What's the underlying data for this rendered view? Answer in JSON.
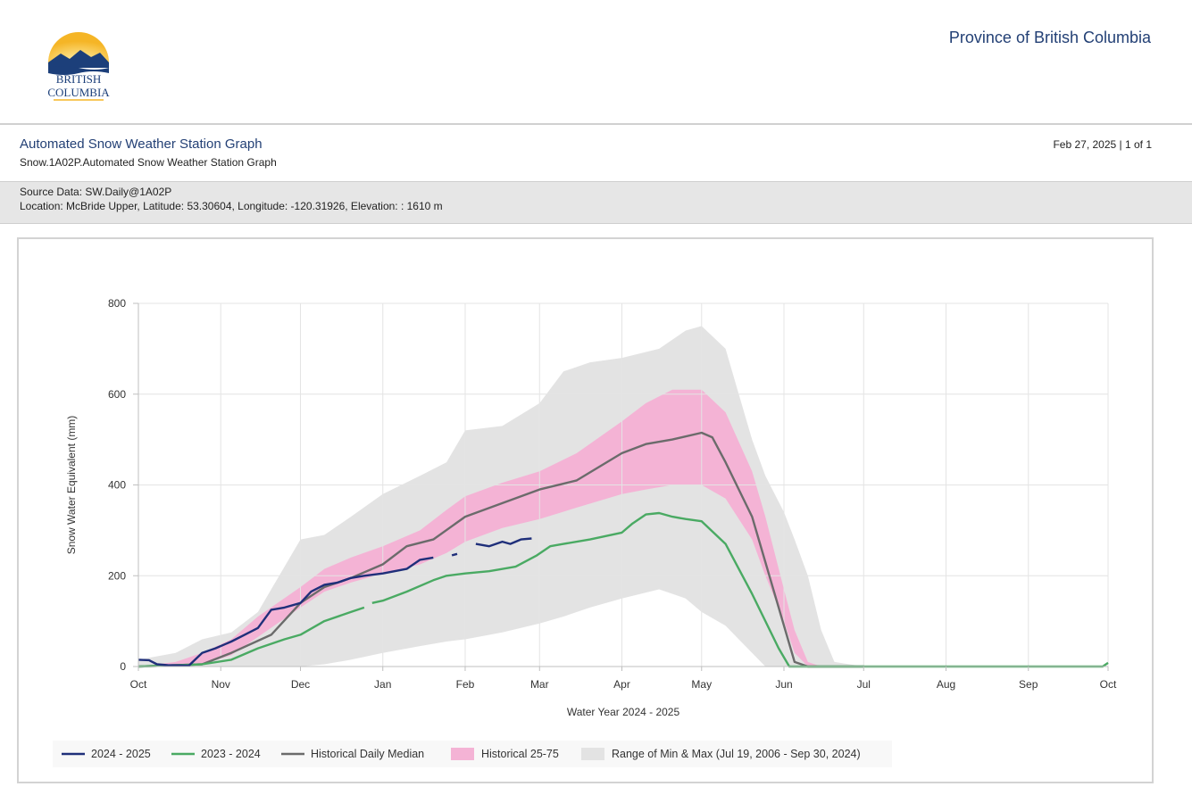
{
  "header": {
    "logo_text": [
      "BRITISH",
      "COLUMBIA"
    ],
    "province": "Province of British Columbia"
  },
  "report": {
    "title": "Automated Snow Weather Station Graph",
    "subtitle": "Snow.1A02P.Automated Snow Weather Station Graph",
    "date_page": "Feb 27, 2025 | 1 of 1",
    "source": "Source Data: SW.Daily@1A02P",
    "location": "Location: McBride Upper, Latitude: 53.30604, Longitude: -120.31926, Elevation: : 1610 m"
  },
  "colors": {
    "title_blue": "#234075",
    "series_2024_2025": "#1f2f7a",
    "series_2023_2024": "#4aaa63",
    "median": "#6b6b6b",
    "band_25_75": "#f4b3d5",
    "band_min_max": "#e3e3e3"
  },
  "chart_data": {
    "type": "line",
    "xlabel": "Water Year 2024 - 2025",
    "ylabel": "Snow Water Equivalent (mm)",
    "ylim": [
      0,
      800
    ],
    "yticks": [
      0,
      200,
      400,
      600,
      800
    ],
    "xlim": [
      "2024-10-01",
      "2025-10-01"
    ],
    "x_tick_labels": [
      "Oct",
      "Nov",
      "Dec",
      "Jan",
      "Feb",
      "Mar",
      "Apr",
      "May",
      "Jun",
      "Jul",
      "Aug",
      "Sep",
      "Oct"
    ],
    "x_ticks": [
      "2024-10-01",
      "2024-11-01",
      "2024-12-01",
      "2025-01-01",
      "2025-02-01",
      "2025-03-01",
      "2025-04-01",
      "2025-05-01",
      "2025-06-01",
      "2025-07-01",
      "2025-08-01",
      "2025-09-01",
      "2025-10-01"
    ],
    "grid": true,
    "legend_position": "bottom",
    "min_max_band": {
      "name": "Range of Min & Max (Jul 19, 2006 - Sep 30, 2024)",
      "x": [
        "2024-10-01",
        "2024-10-15",
        "2024-10-25",
        "2024-11-05",
        "2024-11-15",
        "2024-12-01",
        "2024-12-10",
        "2024-12-20",
        "2025-01-01",
        "2025-01-15",
        "2025-01-25",
        "2025-02-01",
        "2025-02-15",
        "2025-03-01",
        "2025-03-10",
        "2025-03-20",
        "2025-04-01",
        "2025-04-15",
        "2025-04-25",
        "2025-05-01",
        "2025-05-10",
        "2025-05-15",
        "2025-05-20",
        "2025-05-25",
        "2025-06-01",
        "2025-06-05",
        "2025-06-10",
        "2025-06-15",
        "2025-06-20",
        "2025-07-01"
      ],
      "low": [
        0,
        0,
        0,
        0,
        0,
        0,
        5,
        15,
        30,
        45,
        55,
        60,
        75,
        95,
        110,
        130,
        150,
        170,
        150,
        120,
        90,
        60,
        30,
        0,
        0,
        0,
        0,
        0,
        0,
        0
      ],
      "high": [
        15,
        30,
        60,
        75,
        120,
        280,
        290,
        330,
        380,
        420,
        450,
        520,
        530,
        580,
        650,
        670,
        680,
        700,
        740,
        750,
        700,
        600,
        500,
        420,
        340,
        280,
        200,
        80,
        10,
        0
      ]
    },
    "p25_75_band": {
      "name": "Historical 25-75",
      "x": [
        "2024-10-01",
        "2024-10-15",
        "2024-10-25",
        "2024-11-05",
        "2024-11-15",
        "2024-12-01",
        "2024-12-10",
        "2024-12-20",
        "2025-01-01",
        "2025-01-15",
        "2025-01-25",
        "2025-02-01",
        "2025-02-15",
        "2025-03-01",
        "2025-03-15",
        "2025-04-01",
        "2025-04-10",
        "2025-04-20",
        "2025-05-01",
        "2025-05-10",
        "2025-05-20",
        "2025-05-25",
        "2025-06-01",
        "2025-06-05",
        "2025-06-10",
        "2025-06-15"
      ],
      "low": [
        0,
        0,
        5,
        25,
        65,
        130,
        165,
        185,
        205,
        225,
        250,
        275,
        305,
        325,
        350,
        380,
        390,
        400,
        400,
        370,
        280,
        200,
        100,
        30,
        0,
        0
      ],
      "high": [
        0,
        10,
        30,
        60,
        110,
        175,
        215,
        240,
        265,
        300,
        345,
        375,
        405,
        430,
        470,
        540,
        580,
        610,
        610,
        560,
        430,
        330,
        170,
        80,
        10,
        0
      ]
    },
    "series": [
      {
        "name": "2024 - 2025",
        "segments": [
          {
            "x": [
              "2024-10-01",
              "2024-10-05",
              "2024-10-08",
              "2024-10-12",
              "2024-10-20",
              "2024-10-25",
              "2024-10-30",
              "2024-11-05",
              "2024-11-10",
              "2024-11-15",
              "2024-11-20",
              "2024-11-25",
              "2024-12-01",
              "2024-12-05",
              "2024-12-10",
              "2024-12-15",
              "2024-12-20",
              "2024-12-25",
              "2025-01-01",
              "2025-01-10",
              "2025-01-15",
              "2025-01-20"
            ],
            "y": [
              15,
              14,
              5,
              3,
              2,
              30,
              40,
              55,
              70,
              85,
              125,
              130,
              140,
              165,
              180,
              185,
              195,
              200,
              205,
              215,
              235,
              240
            ]
          },
          {
            "x": [
              "2025-01-27",
              "2025-01-29"
            ],
            "y": [
              245,
              248
            ]
          },
          {
            "x": [
              "2025-02-05",
              "2025-02-10",
              "2025-02-15",
              "2025-02-18",
              "2025-02-22",
              "2025-02-26"
            ],
            "y": [
              270,
              265,
              275,
              270,
              280,
              282
            ]
          }
        ]
      },
      {
        "name": "2023 - 2024",
        "segments": [
          {
            "x": [
              "2024-10-01",
              "2024-10-25",
              "2024-11-05",
              "2024-11-15",
              "2024-11-25",
              "2024-12-01",
              "2024-12-10",
              "2024-12-20",
              "2024-12-25"
            ],
            "y": [
              0,
              5,
              15,
              40,
              60,
              70,
              100,
              120,
              130
            ]
          },
          {
            "x": [
              "2024-12-28",
              "2025-01-01",
              "2025-01-10",
              "2025-01-20",
              "2025-01-25",
              "2025-02-01",
              "2025-02-10",
              "2025-02-20",
              "2025-02-28",
              "2025-03-05",
              "2025-03-10",
              "2025-03-20",
              "2025-04-01",
              "2025-04-05",
              "2025-04-10",
              "2025-04-15",
              "2025-04-20",
              "2025-04-25",
              "2025-05-01",
              "2025-05-10",
              "2025-05-20",
              "2025-05-25",
              "2025-05-30",
              "2025-06-03",
              "2025-06-15",
              "2025-07-01",
              "2025-08-01",
              "2025-09-01",
              "2025-09-29",
              "2025-10-01"
            ],
            "y": [
              140,
              145,
              165,
              190,
              200,
              205,
              210,
              220,
              245,
              265,
              270,
              280,
              295,
              315,
              335,
              338,
              330,
              325,
              320,
              270,
              160,
              100,
              40,
              0,
              0,
              0,
              0,
              0,
              0,
              8
            ]
          }
        ]
      },
      {
        "name": "Historical Daily Median",
        "segments": [
          {
            "x": [
              "2024-10-01",
              "2024-10-25",
              "2024-11-05",
              "2024-11-20",
              "2024-12-01",
              "2024-12-10",
              "2024-12-20",
              "2025-01-01",
              "2025-01-10",
              "2025-01-20",
              "2025-02-01",
              "2025-02-15",
              "2025-03-01",
              "2025-03-15",
              "2025-04-01",
              "2025-04-10",
              "2025-04-20",
              "2025-05-01",
              "2025-05-05",
              "2025-05-10",
              "2025-05-20",
              "2025-05-25",
              "2025-06-01",
              "2025-06-05",
              "2025-06-10",
              "2025-07-01"
            ],
            "y": [
              0,
              5,
              30,
              70,
              140,
              175,
              195,
              225,
              265,
              280,
              330,
              360,
              390,
              410,
              470,
              490,
              500,
              515,
              505,
              450,
              330,
              230,
              90,
              10,
              0,
              0
            ]
          }
        ]
      }
    ]
  }
}
